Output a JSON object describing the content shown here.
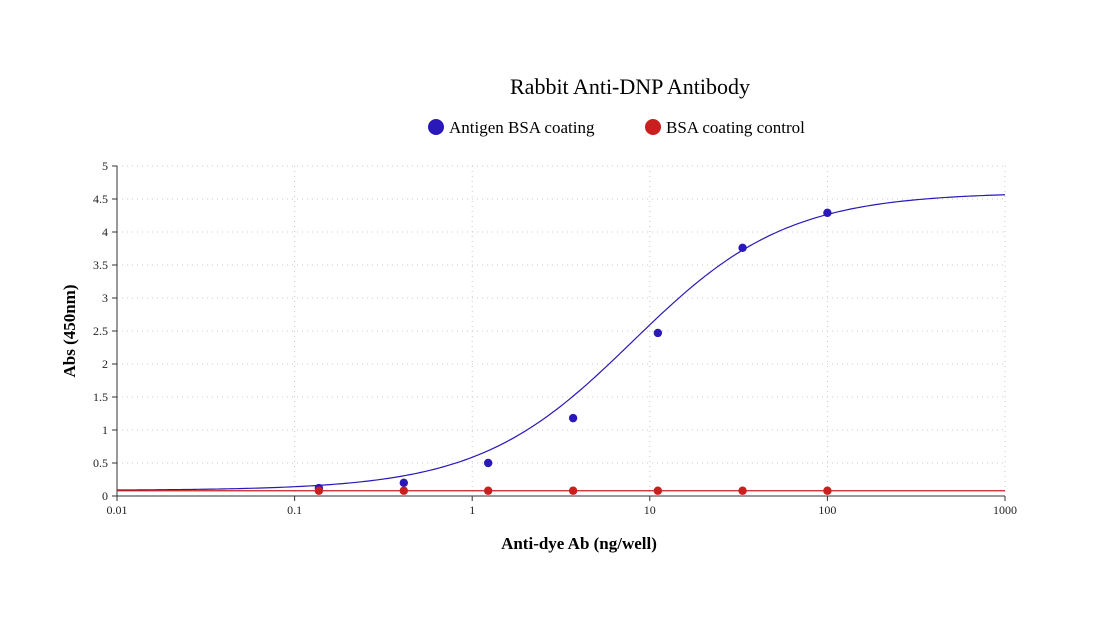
{
  "chart_data": {
    "type": "scatter",
    "title": "Rabbit Anti-DNP Antibody",
    "xlabel": "Anti-dye Ab (ng/well)",
    "ylabel": "Abs (450nm)",
    "xscale": "log",
    "xlim": [
      0.01,
      1000
    ],
    "ylim": [
      0,
      5
    ],
    "xticks": [
      "0.01",
      "0.1",
      "1",
      "10",
      "100",
      "1000"
    ],
    "yticks": [
      "0",
      "0.5",
      "1",
      "1.5",
      "2",
      "2.5",
      "3",
      "3.5",
      "4",
      "4.5",
      "5"
    ],
    "grid": true,
    "legend_position": "top-center",
    "series": [
      {
        "name": "Antigen BSA coating",
        "color": "#2a19b8",
        "x": [
          0.137,
          0.412,
          1.23,
          3.7,
          11.1,
          33.3,
          100
        ],
        "y": [
          0.12,
          0.2,
          0.5,
          1.18,
          2.47,
          3.76,
          4.29
        ],
        "fit": "4PL",
        "fit_params": {
          "bottom": 0.085,
          "top": 4.6,
          "ec50": 8.0,
          "hill": 1.0
        }
      },
      {
        "name": "BSA coating control",
        "color": "#c91f1f",
        "x": [
          0.137,
          0.412,
          1.23,
          3.7,
          11.1,
          33.3,
          100
        ],
        "y": [
          0.08,
          0.08,
          0.08,
          0.08,
          0.08,
          0.08,
          0.08
        ],
        "fit": "constant",
        "fit_params": {
          "value": 0.08
        }
      }
    ]
  }
}
